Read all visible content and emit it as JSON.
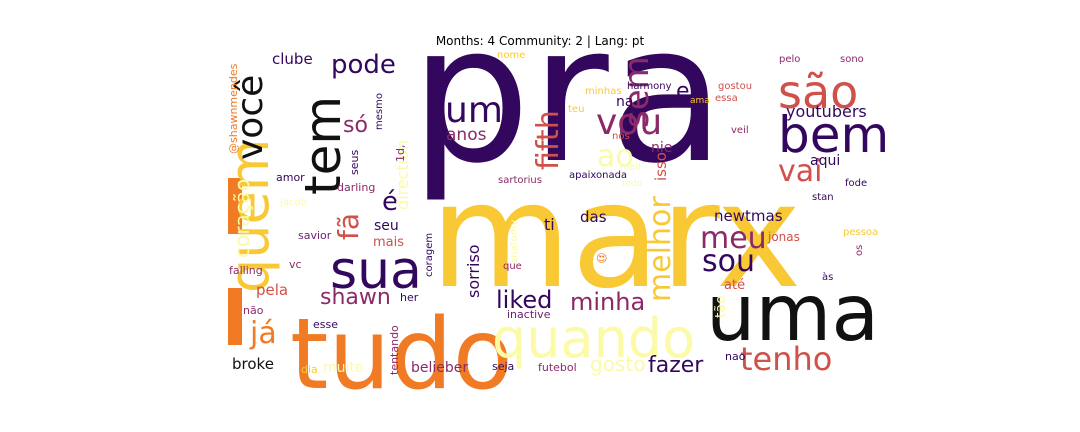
{
  "title": "Months: 4 Community: 2 | Lang: pt",
  "colors": {
    "dark_purple": "#34075f",
    "purple": "#6a1c6e",
    "magenta": "#8c2a69",
    "red": "#d0504a",
    "orange": "#f07b24",
    "yellow": "#f8c935",
    "pale_yellow": "#fbfaa6",
    "black": "#111111"
  },
  "words": [
    {
      "text": "pra",
      "color": "dark_purple"
    },
    {
      "text": "marx",
      "color": "yellow"
    },
    {
      "text": "uma",
      "color": "black"
    },
    {
      "text": "tudo",
      "color": "orange"
    },
    {
      "text": "quando",
      "color": "pale_yellow"
    },
    {
      "text": "quem",
      "color": "yellow"
    },
    {
      "text": "sua",
      "color": "dark_purple"
    },
    {
      "text": "tem",
      "color": "black"
    },
    {
      "text": "bem",
      "color": "dark_purple"
    },
    {
      "text": "são",
      "color": "red"
    },
    {
      "text": "você",
      "color": "black"
    },
    {
      "text": "um",
      "color": "dark_purple"
    },
    {
      "text": "vou",
      "color": "magenta"
    },
    {
      "text": "sem",
      "color": "magenta"
    },
    {
      "text": "fifth",
      "color": "red"
    },
    {
      "text": "melhor",
      "color": "yellow"
    },
    {
      "text": "ao",
      "color": "pale_yellow"
    },
    {
      "text": "tenho",
      "color": "red"
    },
    {
      "text": "meu",
      "color": "magenta"
    },
    {
      "text": "sou",
      "color": "dark_purple"
    },
    {
      "text": "vai",
      "color": "red"
    },
    {
      "text": "já",
      "color": "orange"
    },
    {
      "text": "fã",
      "color": "red"
    },
    {
      "text": "é",
      "color": "dark_purple"
    },
    {
      "text": "pode",
      "color": "dark_purple"
    },
    {
      "text": "só",
      "color": "magenta"
    },
    {
      "text": "eu",
      "color": "dark_purple"
    },
    {
      "text": "minha",
      "color": "magenta"
    },
    {
      "text": "liked",
      "color": "dark_purple"
    },
    {
      "text": "shawn",
      "color": "magenta"
    },
    {
      "text": "fazer",
      "color": "dark_purple"
    },
    {
      "text": "coração",
      "color": "pale_yellow"
    },
    {
      "text": "gosto",
      "color": "pale_yellow"
    },
    {
      "text": "sorriso",
      "color": "dark_purple"
    },
    {
      "text": "youtubers",
      "color": "dark_purple"
    },
    {
      "text": "newtmas",
      "color": "dark_purple"
    },
    {
      "text": "isso",
      "color": "red"
    },
    {
      "text": "anos",
      "color": "magenta"
    },
    {
      "text": "direction",
      "color": "pale_yellow"
    },
    {
      "text": "clube",
      "color": "dark_purple"
    },
    {
      "text": "broke",
      "color": "black"
    },
    {
      "text": "das",
      "color": "dark_purple"
    },
    {
      "text": "pela",
      "color": "red"
    },
    {
      "text": "muito",
      "color": "pale_yellow"
    },
    {
      "text": "belieber",
      "color": "magenta"
    },
    {
      "text": "na",
      "color": "dark_purple"
    },
    {
      "text": "nie",
      "color": "magenta"
    },
    {
      "text": "aqui",
      "color": "dark_purple"
    },
    {
      "text": "ti",
      "color": "dark_purple"
    },
    {
      "text": "até",
      "color": "red"
    },
    {
      "text": "seu",
      "color": "dark_purple"
    },
    {
      "text": "mais",
      "color": "red"
    },
    {
      "text": "jonas",
      "color": "red"
    },
    {
      "text": "tão",
      "color": "pale_yellow"
    },
    {
      "text": "1d,",
      "color": "magenta"
    },
    {
      "text": "savior",
      "color": "purple"
    },
    {
      "text": "vc",
      "color": "magenta"
    },
    {
      "text": "falling",
      "color": "magenta"
    },
    {
      "text": "não",
      "color": "magenta"
    },
    {
      "text": "esse",
      "color": "dark_purple"
    },
    {
      "text": "her",
      "color": "dark_purple"
    },
    {
      "text": "dia",
      "color": "yellow"
    },
    {
      "text": "tentando",
      "color": "magenta"
    },
    {
      "text": "seja",
      "color": "dark_purple"
    },
    {
      "text": "futebol",
      "color": "magenta"
    },
    {
      "text": "nao",
      "color": "dark_purple"
    },
    {
      "text": "inactive",
      "color": "purple"
    },
    {
      "text": "anatomy",
      "color": "pale_yellow"
    },
    {
      "text": "que",
      "color": "magenta"
    },
    {
      "text": "coragem",
      "color": "dark_purple"
    },
    {
      "text": "darling",
      "color": "magenta"
    },
    {
      "text": "amor",
      "color": "dark_purple"
    },
    {
      "text": "jacob",
      "color": "pale_yellow"
    },
    {
      "text": "seus",
      "color": "dark_purple"
    },
    {
      "text": "mesmo",
      "color": "dark_purple"
    },
    {
      "text": "nome",
      "color": "yellow"
    },
    {
      "text": "minhas",
      "color": "yellow"
    },
    {
      "text": "harmony",
      "color": "dark_purple"
    },
    {
      "text": "gostou",
      "color": "red"
    },
    {
      "text": "ama",
      "color": "yellow"
    },
    {
      "text": "essa",
      "color": "red"
    },
    {
      "text": "teu",
      "color": "yellow"
    },
    {
      "text": "nós",
      "color": "red"
    },
    {
      "text": "niall",
      "color": "pale_yellow"
    },
    {
      "text": "veil",
      "color": "magenta"
    },
    {
      "text": "apaixonada",
      "color": "dark_purple"
    },
    {
      "text": "sartorius",
      "color": "magenta"
    },
    {
      "text": "todo",
      "color": "pale_yellow"
    },
    {
      "text": "pelo",
      "color": "magenta"
    },
    {
      "text": "sono",
      "color": "magenta"
    },
    {
      "text": "stan",
      "color": "dark_purple"
    },
    {
      "text": "fode",
      "color": "dark_purple"
    },
    {
      "text": "pessoa",
      "color": "yellow"
    },
    {
      "text": "os",
      "color": "magenta"
    },
    {
      "text": "às",
      "color": "dark_purple"
    },
    {
      "text": "@shawnmendes",
      "color": "orange"
    },
    {
      "text": "😍",
      "color": "orange"
    }
  ]
}
